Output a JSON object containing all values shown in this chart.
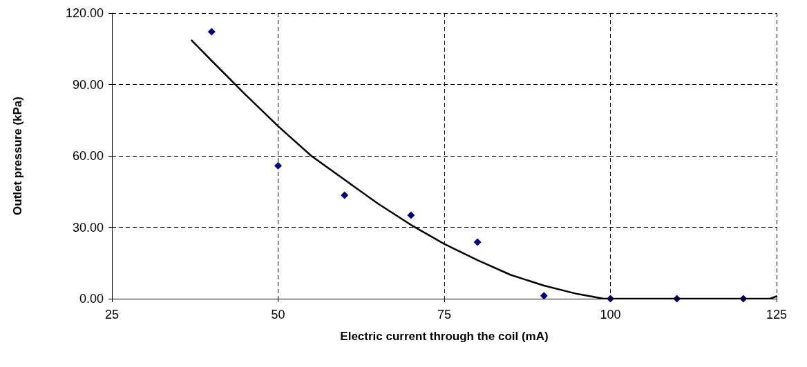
{
  "chart_data": {
    "type": "scatter",
    "xlabel": "Electric current through the coil (mA)",
    "ylabel": "Outlet pressure (kPa)",
    "xlim": [
      25,
      125
    ],
    "xticks": [
      25,
      50,
      75,
      100,
      125
    ],
    "ylim": [
      0,
      120
    ],
    "yticks": [
      {
        "value": 0,
        "label": "0.00"
      },
      {
        "value": 30,
        "label": "30.00"
      },
      {
        "value": 60,
        "label": "60.00"
      },
      {
        "value": 90,
        "label": "90.00"
      },
      {
        "value": 120,
        "label": "120.00"
      }
    ],
    "grid": true,
    "series": [
      {
        "color": "#000080",
        "marker": "diamond",
        "x": [
          40,
          50,
          60,
          70,
          80,
          90,
          100,
          110,
          120
        ],
        "values": [
          112.2,
          55.9,
          43.5,
          35.1,
          23.8,
          1.2,
          0,
          0,
          0
        ]
      },
      {
        "type": "line",
        "color": "#000000",
        "marker": "none",
        "x": [
          37,
          40,
          45,
          50,
          55,
          60,
          65,
          70,
          75,
          80,
          85,
          90,
          95,
          99,
          124,
          125
        ],
        "values": [
          108.5,
          100,
          86,
          72.5,
          60,
          50,
          40,
          31,
          23,
          16.2,
          10,
          5.5,
          2,
          0,
          0,
          1
        ]
      }
    ]
  }
}
